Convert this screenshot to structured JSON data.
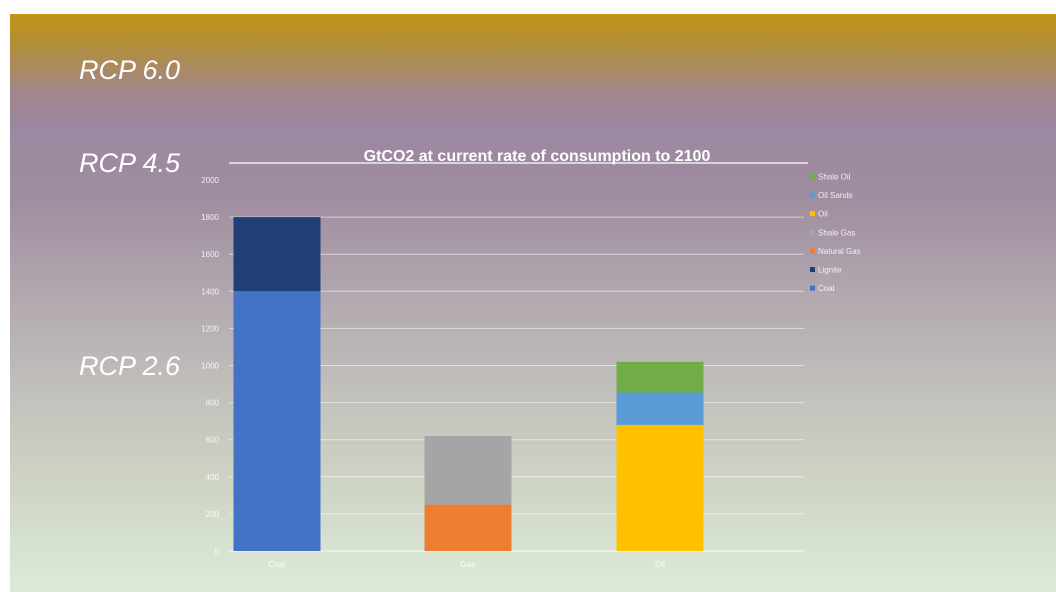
{
  "annotations": {
    "rcp60": "RCP 6.0",
    "rcp45": "RCP 4.5",
    "rcp26": "RCP 2.6"
  },
  "chart_data": {
    "type": "bar",
    "stacked": true,
    "title": "GtCO2 at current rate of consumption to 2100",
    "xlabel": "",
    "ylabel": "",
    "categories": [
      "Coal",
      "Gas",
      "Oil"
    ],
    "ylim": [
      0,
      2000
    ],
    "yticks": [
      0,
      200,
      400,
      600,
      800,
      1000,
      1200,
      1400,
      1600,
      1800,
      2000
    ],
    "grid": true,
    "legend_position": "right",
    "series": [
      {
        "name": "Coal",
        "color": "#4472c4",
        "values": [
          1400,
          0,
          0
        ]
      },
      {
        "name": "Lignite",
        "color": "#203f74",
        "values": [
          400,
          0,
          0
        ]
      },
      {
        "name": "Natural Gas",
        "color": "#ed7d31",
        "values": [
          0,
          250,
          0
        ]
      },
      {
        "name": "Shale Gas",
        "color": "#a5a5a5",
        "values": [
          0,
          370,
          0
        ]
      },
      {
        "name": "Oil",
        "color": "#ffc000",
        "values": [
          0,
          0,
          680
        ]
      },
      {
        "name": "Oil Sands",
        "color": "#5b9bd5",
        "values": [
          0,
          0,
          175
        ]
      },
      {
        "name": "Shale  Oil",
        "color": "#70ad47",
        "values": [
          0,
          0,
          165
        ]
      }
    ]
  }
}
